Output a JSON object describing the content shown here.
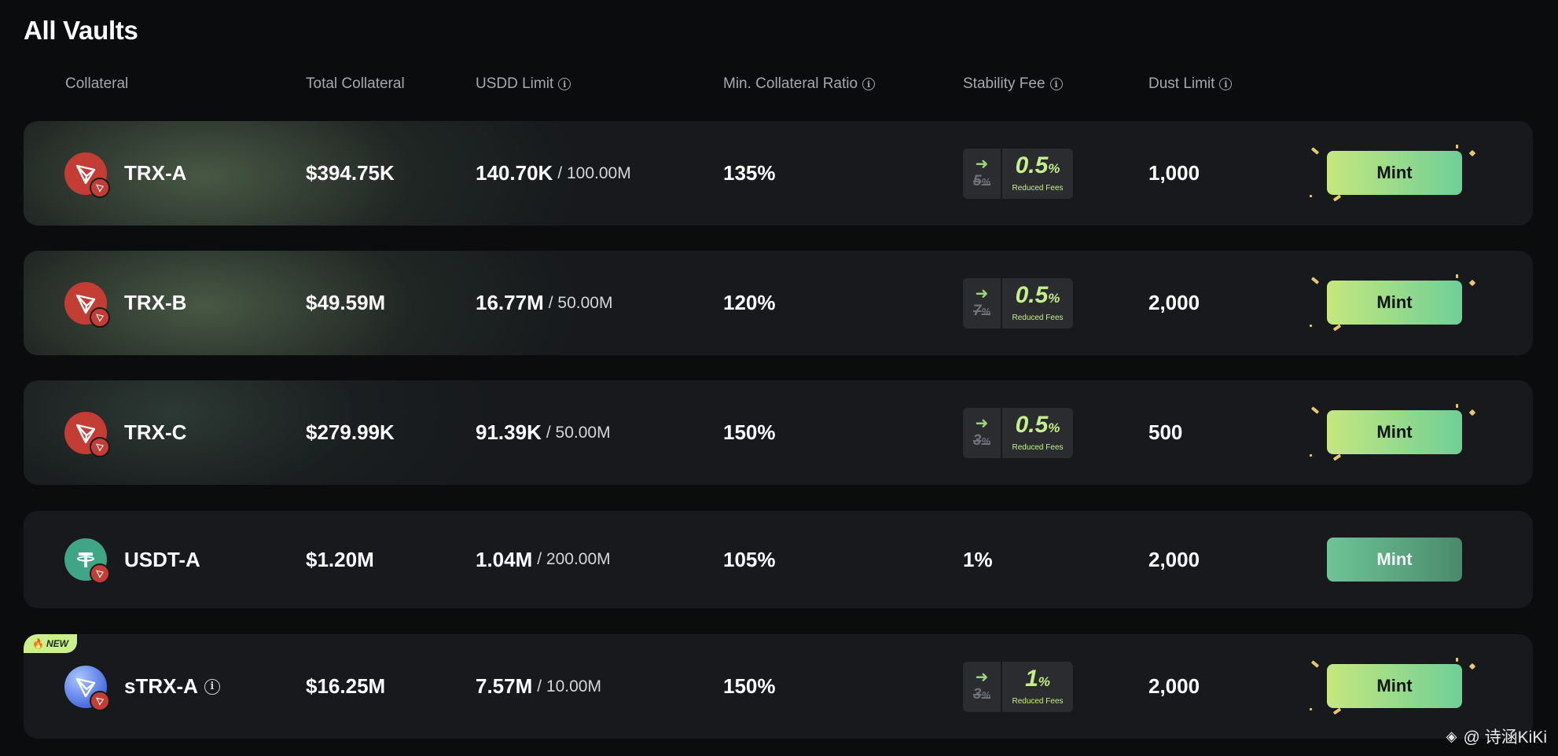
{
  "title": "All Vaults",
  "headers": {
    "collateral": "Collateral",
    "total_collateral": "Total Collateral",
    "usdd_limit": "USDD Limit",
    "min_ratio": "Min. Collateral Ratio",
    "stability_fee": "Stability Fee",
    "dust_limit": "Dust Limit"
  },
  "vaults": [
    {
      "name": "TRX-A",
      "total": "$394.75K",
      "used": "140.70K",
      "limit": "/ 100.00M",
      "ratio": "135%",
      "fee_old": "5",
      "fee_new": "0.5",
      "fee_pct": "%",
      "fee_label": "Reduced Fees",
      "dust": "1,000",
      "mint": "Mint"
    },
    {
      "name": "TRX-B",
      "total": "$49.59M",
      "used": "16.77M",
      "limit": "/ 50.00M",
      "ratio": "120%",
      "fee_old": "7",
      "fee_new": "0.5",
      "fee_pct": "%",
      "fee_label": "Reduced Fees",
      "dust": "2,000",
      "mint": "Mint"
    },
    {
      "name": "TRX-C",
      "total": "$279.99K",
      "used": "91.39K",
      "limit": "/ 50.00M",
      "ratio": "150%",
      "fee_old": "3",
      "fee_new": "0.5",
      "fee_pct": "%",
      "fee_label": "Reduced Fees",
      "dust": "500",
      "mint": "Mint"
    },
    {
      "name": "USDT-A",
      "total": "$1.20M",
      "used": "1.04M",
      "limit": "/ 200.00M",
      "ratio": "105%",
      "fee": "1%",
      "dust": "2,000",
      "mint": "Mint"
    },
    {
      "name": "sTRX-A",
      "badge": "NEW",
      "total": "$16.25M",
      "used": "7.57M",
      "limit": "/ 10.00M",
      "ratio": "150%",
      "fee_old": "3",
      "fee_new": "1",
      "fee_pct": "%",
      "fee_label": "Reduced Fees",
      "dust": "2,000",
      "mint": "Mint"
    }
  ],
  "icons": {
    "tron": "tron-logo-icon",
    "tether": "tether-logo-icon",
    "strx": "strx-logo-icon",
    "info": "info-icon",
    "arrow": "arrow-right-icon",
    "fire": "fire-icon"
  },
  "colors": {
    "accent_lime": "#c5ef8a",
    "mint_gradient_start": "#c6e77f",
    "mint_gradient_end": "#6fcf97",
    "tron_red": "#c43d35",
    "tether_green": "#3fa584"
  },
  "watermark": "@ 诗涵KiKi"
}
